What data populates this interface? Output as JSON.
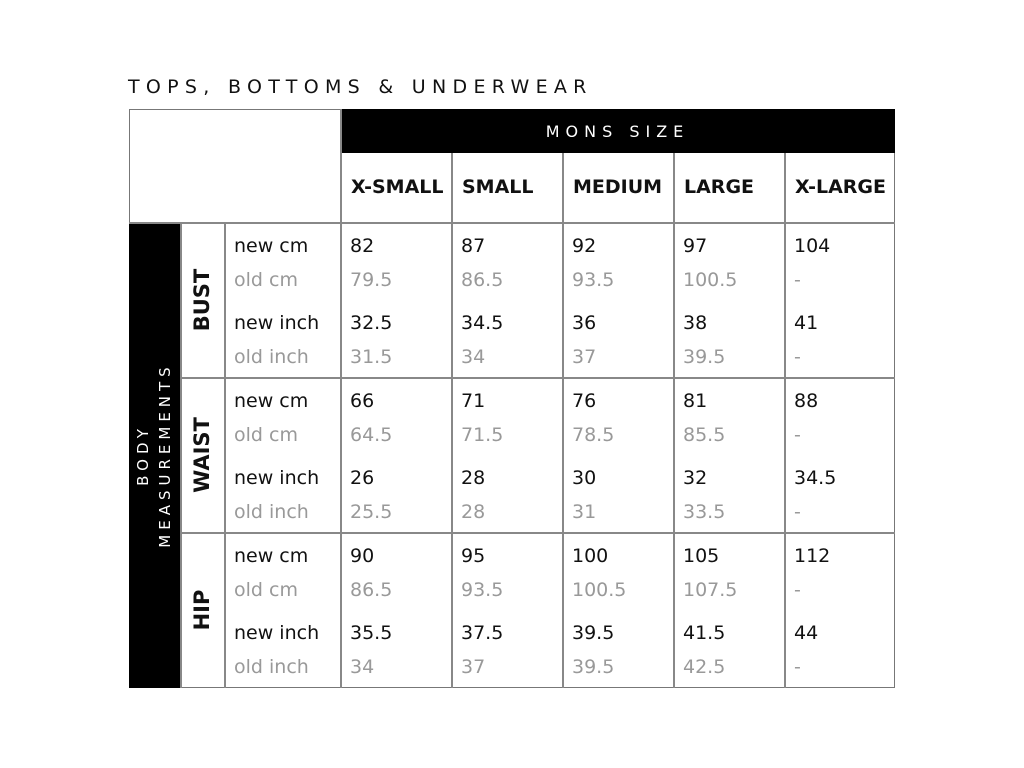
{
  "title": "TOPS, BOTTOMS & UNDERWEAR",
  "header": "MONS SIZE",
  "side_label": [
    "BODY",
    "MEASUREMENTS"
  ],
  "sizes": [
    "X-SMALL",
    "SMALL",
    "MEDIUM",
    "LARGE",
    "X-LARGE"
  ],
  "row_labels": [
    "new cm",
    "old cm",
    "new inch",
    "old inch"
  ],
  "groups": [
    {
      "name": "BUST",
      "rows": [
        [
          "82",
          "87",
          "92",
          "97",
          "104"
        ],
        [
          "79.5",
          "86.5",
          "93.5",
          "100.5",
          "-"
        ],
        [
          "32.5",
          "34.5",
          "36",
          "38",
          "41"
        ],
        [
          "31.5",
          "34",
          "37",
          "39.5",
          "-"
        ]
      ]
    },
    {
      "name": "WAIST",
      "rows": [
        [
          "66",
          "71",
          "76",
          "81",
          "88"
        ],
        [
          "64.5",
          "71.5",
          "78.5",
          "85.5",
          "-"
        ],
        [
          "26",
          "28",
          "30",
          "32",
          "34.5"
        ],
        [
          "25.5",
          "28",
          "31",
          "33.5",
          "-"
        ]
      ]
    },
    {
      "name": "HIP",
      "rows": [
        [
          "90",
          "95",
          "100",
          "105",
          "112"
        ],
        [
          "86.5",
          "93.5",
          "100.5",
          "107.5",
          "-"
        ],
        [
          "35.5",
          "37.5",
          "39.5",
          "41.5",
          "44"
        ],
        [
          "34",
          "37",
          "39.5",
          "42.5",
          "-"
        ]
      ]
    }
  ],
  "colors": {
    "header_bg": "#000000",
    "new_text": "#111111",
    "old_text": "#999999",
    "border": "#888888"
  }
}
